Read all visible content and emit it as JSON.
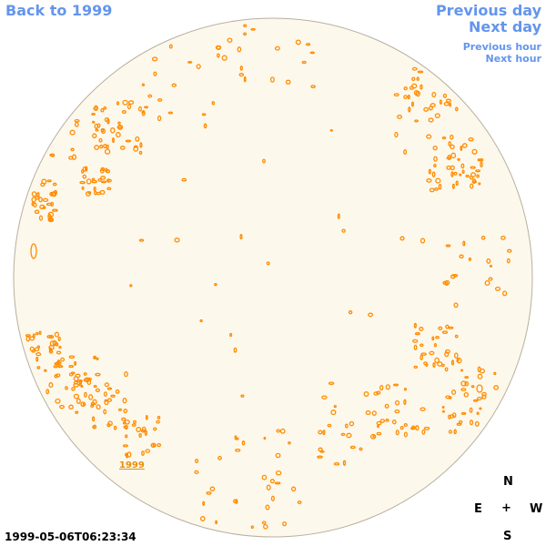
{
  "nav": {
    "back_label": "Back to 1999",
    "previous_day": "Previous day",
    "next_day": "Next day",
    "previous_hour": "Previous hour",
    "next_hour": "Next hour"
  },
  "compass": {
    "north": "N",
    "east": "E",
    "center": "+",
    "west": "W",
    "south": "S"
  },
  "timestamp": "1999-05-06T06:23:34",
  "regions": [
    {
      "label": "1999"
    }
  ],
  "colors": {
    "link": "#6495ed",
    "disk_fill": "#fdf8ec",
    "disk_border": "#b8b0a0",
    "feature": "#ff8c00"
  }
}
